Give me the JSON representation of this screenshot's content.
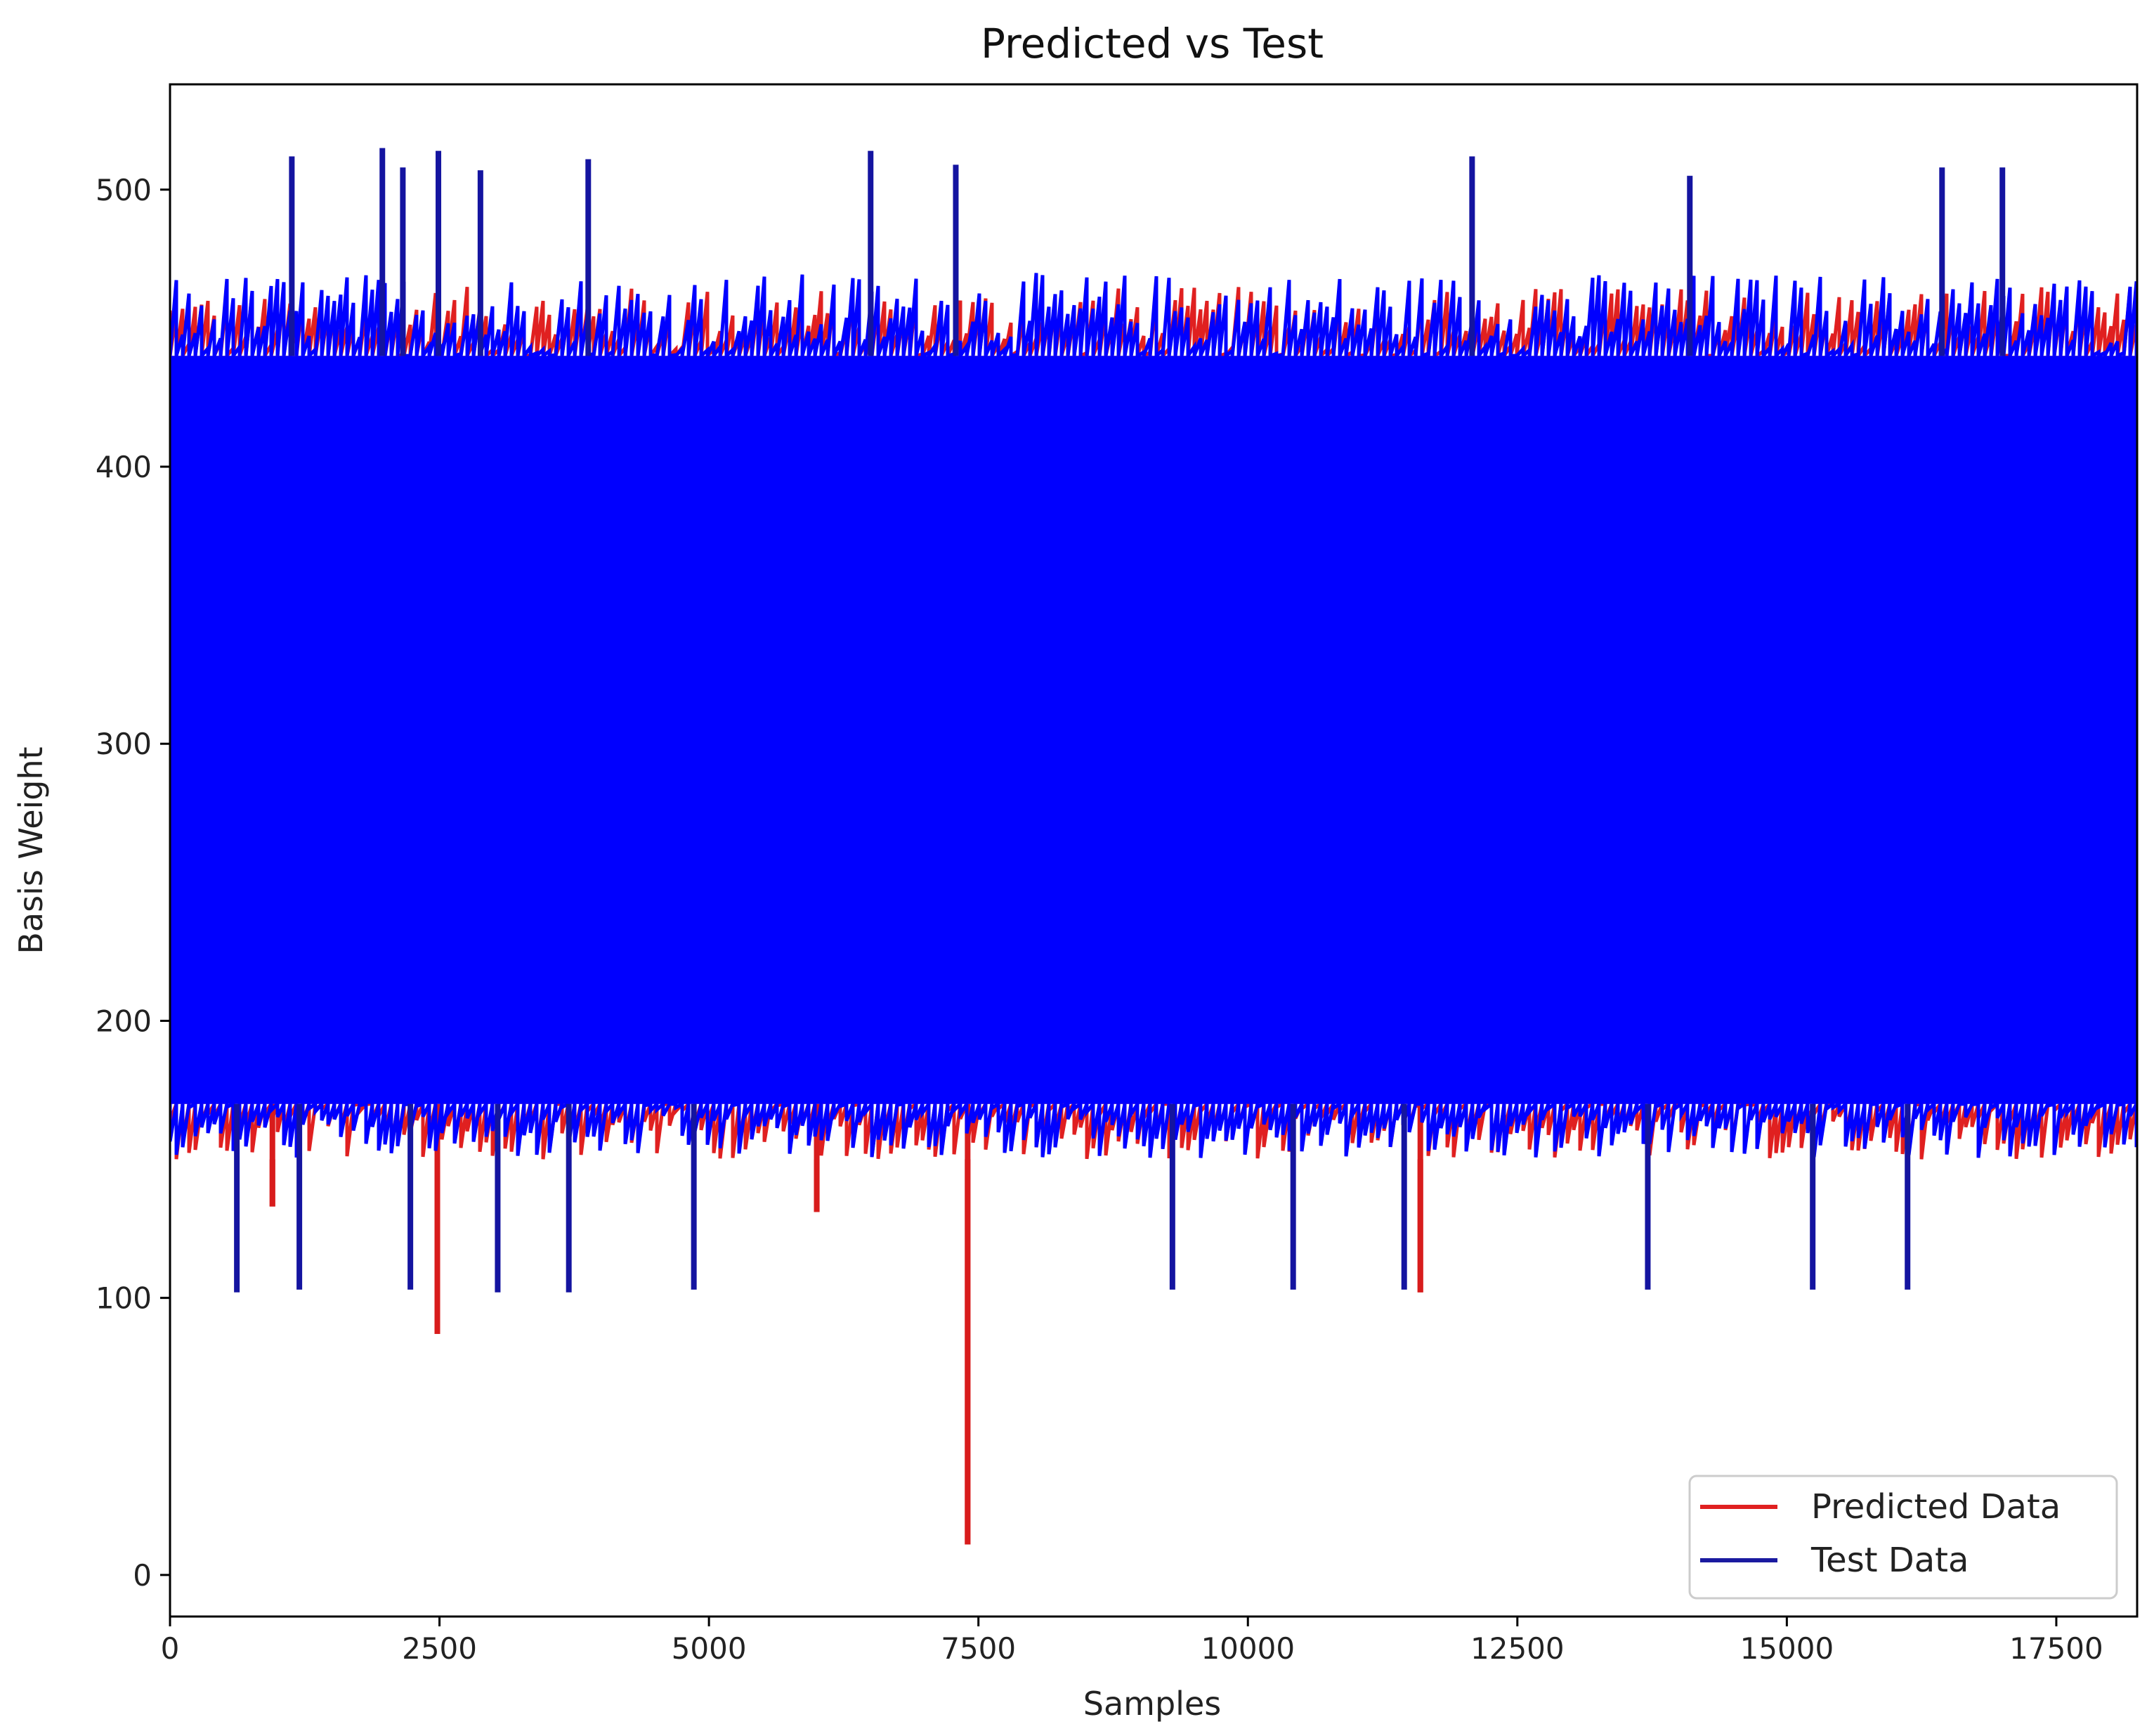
{
  "chart_data": {
    "type": "line",
    "title": "Predicted vs Test",
    "xlabel": "Samples",
    "ylabel": "Basis Weight",
    "xlim": [
      0,
      18250
    ],
    "ylim": [
      -15,
      538
    ],
    "xticks": [
      0,
      2500,
      5000,
      7500,
      10000,
      12500,
      15000,
      17500
    ],
    "xtick_labels": [
      "0",
      "2500",
      "5000",
      "7500",
      "10000",
      "12500",
      "15000",
      "17500"
    ],
    "yticks": [
      0,
      100,
      200,
      300,
      400,
      500
    ],
    "ytick_labels": [
      "0",
      "100",
      "200",
      "300",
      "400",
      "500"
    ],
    "legend_position": "bottom-right",
    "grid": false,
    "series": [
      {
        "name": "Predicted Data",
        "color": "#e02020",
        "band_range": [
          170,
          440
        ],
        "typical_range": [
          150,
          465
        ],
        "notable_low_values": [
          {
            "x": 2480,
            "y": 87
          },
          {
            "x": 7400,
            "y": 11
          },
          {
            "x": 11600,
            "y": 102
          },
          {
            "x": 950,
            "y": 133
          },
          {
            "x": 6000,
            "y": 131
          }
        ]
      },
      {
        "name": "Test Data",
        "color": "#0000ff",
        "legend_color": "#1a1aa0",
        "band_range": [
          170,
          440
        ],
        "typical_range": [
          150,
          470
        ],
        "notable_high_values": [
          {
            "x": 1130,
            "y": 512
          },
          {
            "x": 1970,
            "y": 515
          },
          {
            "x": 2490,
            "y": 514
          },
          {
            "x": 6500,
            "y": 514
          },
          {
            "x": 12080,
            "y": 512
          },
          {
            "x": 2160,
            "y": 508
          },
          {
            "x": 2880,
            "y": 507
          },
          {
            "x": 3880,
            "y": 511
          },
          {
            "x": 7290,
            "y": 509
          },
          {
            "x": 14100,
            "y": 505
          },
          {
            "x": 16440,
            "y": 508
          },
          {
            "x": 17000,
            "y": 508
          }
        ],
        "notable_low_values": [
          {
            "x": 620,
            "y": 102
          },
          {
            "x": 1200,
            "y": 103
          },
          {
            "x": 2230,
            "y": 103
          },
          {
            "x": 3040,
            "y": 102
          },
          {
            "x": 3700,
            "y": 102
          },
          {
            "x": 4860,
            "y": 103
          },
          {
            "x": 9300,
            "y": 103
          },
          {
            "x": 10420,
            "y": 103
          },
          {
            "x": 11450,
            "y": 103
          },
          {
            "x": 13710,
            "y": 103
          },
          {
            "x": 15240,
            "y": 103
          },
          {
            "x": 16120,
            "y": 103
          }
        ]
      }
    ]
  }
}
